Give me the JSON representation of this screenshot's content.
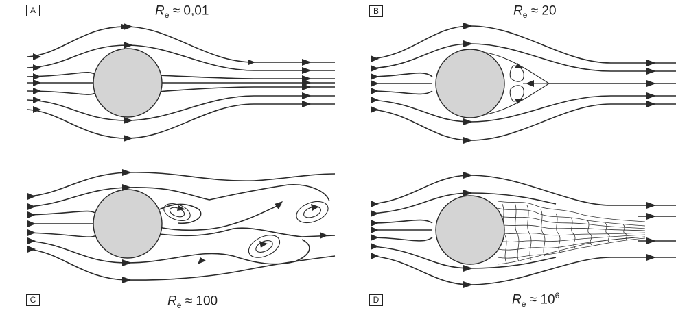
{
  "panels": [
    {
      "tag": "A",
      "symbol": "R",
      "subscript": "e",
      "approx": "≈",
      "value": "0,01",
      "superscript": ""
    },
    {
      "tag": "B",
      "symbol": "R",
      "subscript": "e",
      "approx": "≈",
      "value": "20",
      "superscript": ""
    },
    {
      "tag": "C",
      "symbol": "R",
      "subscript": "e",
      "approx": "≈",
      "value": "100",
      "superscript": ""
    },
    {
      "tag": "D",
      "symbol": "R",
      "subscript": "e",
      "approx": "≈",
      "value": "10",
      "superscript": "6"
    }
  ],
  "colors": {
    "cylinder": "#d4d4d4",
    "line": "#2a2a2a"
  }
}
